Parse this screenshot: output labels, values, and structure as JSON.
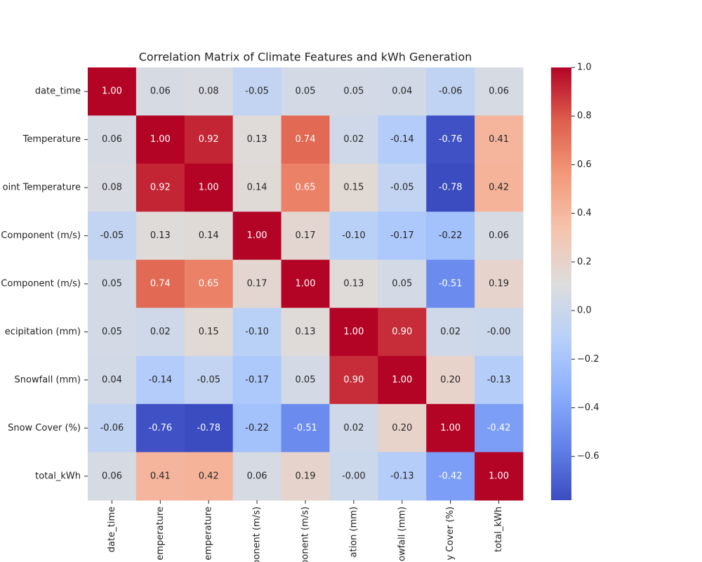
{
  "chart_data": {
    "type": "heatmap",
    "title": "Correlation Matrix of Climate Features and kWh Generation",
    "y_categories": [
      "date_time",
      "Temperature",
      "oint Temperature",
      "Component (m/s)",
      "Component (m/s)",
      "ecipitation (mm)",
      "Snowfall (mm)",
      "Snow Cover (%)",
      "total_kWh"
    ],
    "x_categories": [
      "date_time",
      "emperature",
      "emperature",
      "ponent (m/s)",
      "ponent (m/s)",
      "ation (mm)",
      "owfall (mm)",
      "y Cover (%)",
      "total_kWh"
    ],
    "values": [
      [
        1.0,
        0.06,
        0.08,
        -0.05,
        0.05,
        0.05,
        0.04,
        -0.06,
        0.06
      ],
      [
        0.06,
        1.0,
        0.92,
        0.13,
        0.74,
        0.02,
        -0.14,
        -0.76,
        0.41
      ],
      [
        0.08,
        0.92,
        1.0,
        0.14,
        0.65,
        0.15,
        -0.05,
        -0.78,
        0.42
      ],
      [
        -0.05,
        0.13,
        0.14,
        1.0,
        0.17,
        -0.1,
        -0.17,
        -0.22,
        0.06
      ],
      [
        0.05,
        0.74,
        0.65,
        0.17,
        1.0,
        0.13,
        0.05,
        -0.51,
        0.19
      ],
      [
        0.05,
        0.02,
        0.15,
        -0.1,
        0.13,
        1.0,
        0.9,
        0.02,
        0
      ],
      [
        0.04,
        -0.14,
        -0.05,
        -0.17,
        0.05,
        0.9,
        1.0,
        0.2,
        -0.13
      ],
      [
        -0.06,
        -0.76,
        -0.78,
        -0.22,
        -0.51,
        0.02,
        0.2,
        1.0,
        -0.42
      ],
      [
        0.06,
        0.41,
        0.42,
        0.06,
        0.19,
        0,
        -0.13,
        -0.42,
        1.0
      ]
    ],
    "value_labels": [
      [
        "1.00",
        "0.06",
        "0.08",
        "-0.05",
        "0.05",
        "0.05",
        "0.04",
        "-0.06",
        "0.06"
      ],
      [
        "0.06",
        "1.00",
        "0.92",
        "0.13",
        "0.74",
        "0.02",
        "-0.14",
        "-0.76",
        "0.41"
      ],
      [
        "0.08",
        "0.92",
        "1.00",
        "0.14",
        "0.65",
        "0.15",
        "-0.05",
        "-0.78",
        "0.42"
      ],
      [
        "-0.05",
        "0.13",
        "0.14",
        "1.00",
        "0.17",
        "-0.10",
        "-0.17",
        "-0.22",
        "0.06"
      ],
      [
        "0.05",
        "0.74",
        "0.65",
        "0.17",
        "1.00",
        "0.13",
        "0.05",
        "-0.51",
        "0.19"
      ],
      [
        "0.05",
        "0.02",
        "0.15",
        "-0.10",
        "0.13",
        "1.00",
        "0.90",
        "0.02",
        "-0.00"
      ],
      [
        "0.04",
        "-0.14",
        "-0.05",
        "-0.17",
        "0.05",
        "0.90",
        "1.00",
        "0.20",
        "-0.13"
      ],
      [
        "-0.06",
        "-0.76",
        "-0.78",
        "-0.22",
        "-0.51",
        "0.02",
        "0.20",
        "1.00",
        "-0.42"
      ],
      [
        "0.06",
        "0.41",
        "0.42",
        "0.06",
        "0.19",
        "-0.00",
        "-0.13",
        "-0.42",
        "1.00"
      ]
    ],
    "colormap": "coolwarm",
    "clim": [
      -0.78,
      1.0
    ],
    "cticks": [
      {
        "value": -0.6,
        "label": "−0.6"
      },
      {
        "value": -0.4,
        "label": "−0.4"
      },
      {
        "value": -0.2,
        "label": "−0.2"
      },
      {
        "value": 0.0,
        "label": "0.0"
      },
      {
        "value": 0.2,
        "label": "0.2"
      },
      {
        "value": 0.4,
        "label": "0.4"
      },
      {
        "value": 0.6,
        "label": "0.6"
      },
      {
        "value": 0.8,
        "label": "0.8"
      },
      {
        "value": 1.0,
        "label": "1.0"
      }
    ]
  }
}
